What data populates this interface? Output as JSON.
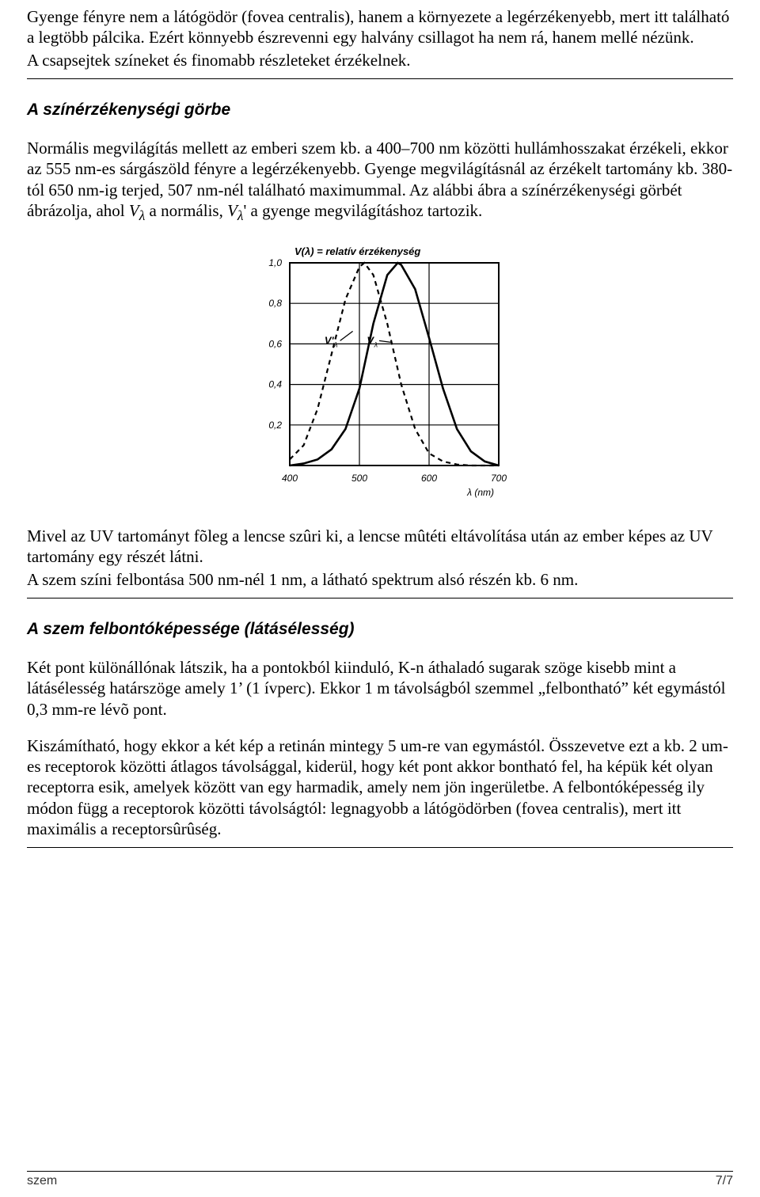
{
  "intro": {
    "p1": "Gyenge fényre nem a látógödör (fovea centralis), hanem a környezete a legérzékenyebb, mert itt található a legtöbb pálcika. Ezért könnyebb észrevenni egy halvány csillagot ha nem rá, hanem mellé nézünk.",
    "p2": "A csapsejtek színeket és finomabb részleteket érzékelnek."
  },
  "section1": {
    "heading": "A színérzékenységi görbe",
    "body_a": "Normális megvilágítás mellett az emberi szem kb. a 400–700 nm közötti hullámhosszakat érzékeli, ekkor az 555 nm-es sárgászöld fényre a legérzékenyebb. Gyenge megvilágításnál az érzékelt tartomány kb. 380-tól 650 nm-ig terjed, 507 nm-nél található maximummal. Az alábbi ábra a színérzékenységi görbét ábrázolja, ahol ",
    "vlambda": "V",
    "body_b": " a normális, ",
    "vlambda2": "V",
    "body_c": "' a gyenge megvilágításhoz tartozik.",
    "after1": "Mivel az UV tartományt fõleg a lencse szûri ki, a lencse mûtéti eltávolítása után az ember képes az UV tartomány egy részét látni.",
    "after2": "A szem színi felbontása 500 nm-nél 1 nm, a látható spektrum alsó részén kb. 6 nm."
  },
  "chart": {
    "type": "line",
    "title": "V(λ) = relatív érzékenység",
    "xlabel": "λ (nm)",
    "xlim": [
      400,
      700
    ],
    "ylim": [
      0,
      1.0
    ],
    "xticks": [
      400,
      500,
      600,
      700
    ],
    "yticks": [
      0.2,
      0.4,
      0.6,
      0.8,
      1.0
    ],
    "background_color": "#ffffff",
    "grid_color": "#000000",
    "series": [
      {
        "name": "Vλ",
        "label": "Vλ",
        "dash": "none",
        "color": "#000000",
        "width": 2.6,
        "points": [
          [
            400,
            0.0
          ],
          [
            420,
            0.01
          ],
          [
            440,
            0.03
          ],
          [
            460,
            0.08
          ],
          [
            480,
            0.18
          ],
          [
            500,
            0.38
          ],
          [
            520,
            0.7
          ],
          [
            540,
            0.94
          ],
          [
            555,
            1.0
          ],
          [
            560,
            0.99
          ],
          [
            580,
            0.87
          ],
          [
            600,
            0.63
          ],
          [
            620,
            0.38
          ],
          [
            640,
            0.18
          ],
          [
            660,
            0.07
          ],
          [
            680,
            0.02
          ],
          [
            700,
            0.0
          ]
        ]
      },
      {
        "name": "Vλ'",
        "label": "V'λ",
        "dash": "6,5",
        "color": "#000000",
        "width": 2.2,
        "points": [
          [
            400,
            0.03
          ],
          [
            420,
            0.1
          ],
          [
            440,
            0.28
          ],
          [
            460,
            0.55
          ],
          [
            480,
            0.82
          ],
          [
            500,
            0.98
          ],
          [
            507,
            1.0
          ],
          [
            520,
            0.94
          ],
          [
            540,
            0.7
          ],
          [
            560,
            0.4
          ],
          [
            580,
            0.18
          ],
          [
            600,
            0.06
          ],
          [
            620,
            0.02
          ],
          [
            640,
            0.005
          ],
          [
            660,
            0.0
          ],
          [
            680,
            0.0
          ],
          [
            700,
            0.0
          ]
        ]
      }
    ],
    "series_label_pos": {
      "Vλ": [
        525,
        0.6
      ],
      "Vλ'": [
        470,
        0.6
      ]
    },
    "label_fontsize": 12,
    "tick_fontsize": 12,
    "title_fontsize": 13
  },
  "section2": {
    "heading": "A szem felbontóképessége (látásélesség)",
    "p1": "Két pont különállónak látszik, ha a pontokból kiinduló, K-n áthaladó sugarak szöge kisebb mint a látásélesség határszöge amely 1’ (1 ívperc). Ekkor 1 m távolságból szemmel „felbontható” két egymástól 0,3 mm-re lévõ pont.",
    "p2": "Kiszámítható, hogy ekkor a két kép a retinán mintegy 5 um-re van egymástól. Összevetve ezt a kb. 2 um-es receptorok közötti átlagos távolsággal, kiderül, hogy két pont akkor bontható fel, ha képük két olyan receptorra esik, amelyek között van egy harmadik, amely nem jön ingerületbe. A felbontóképesség ily módon függ a receptorok közötti távolságtól: legnagyobb a látógödörben (fovea centralis), mert itt maximális a receptorsûrûség."
  },
  "footer": {
    "left": "szem",
    "right": "7/7"
  }
}
